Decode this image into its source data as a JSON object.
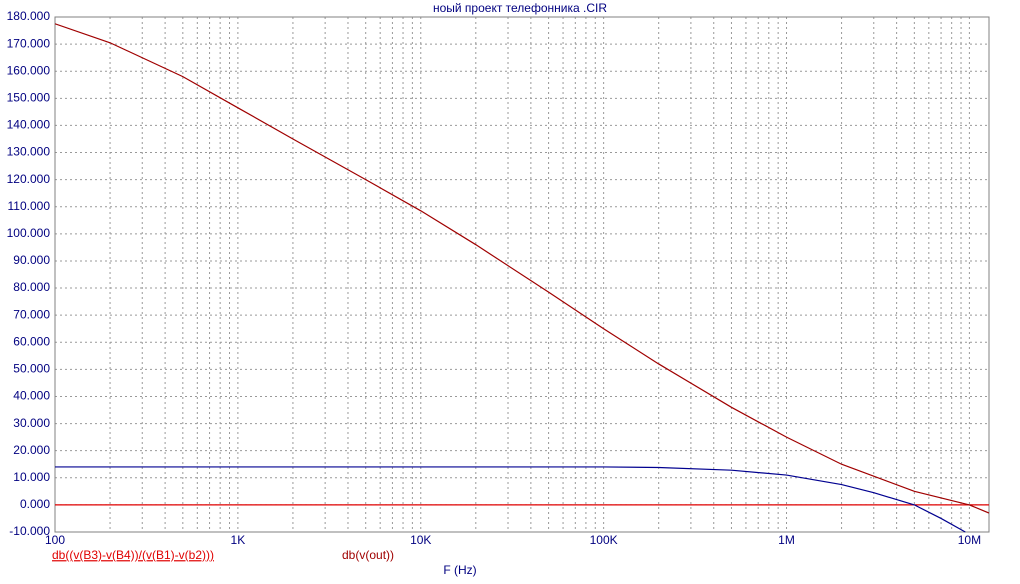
{
  "chart_data": {
    "type": "line",
    "title": "ноый проект телефонника .CIR",
    "x_label": "F (Hz)",
    "log_x": true,
    "grid": true,
    "xlim": [
      100,
      12800000
    ],
    "ylim": [
      -10,
      180
    ],
    "xticks": [
      100,
      {
        "value": 1000,
        "label": "1K"
      },
      {
        "value": 10000,
        "label": "10K"
      },
      {
        "value": 100000,
        "label": "100K"
      },
      {
        "value": 1000000,
        "label": "1M"
      },
      {
        "value": 10000000,
        "label": "10M"
      }
    ],
    "yticks": [
      {
        "value": -10,
        "label": "-10.000"
      },
      {
        "value": 0,
        "label": "0.000"
      },
      {
        "value": 10,
        "label": "10.000"
      },
      {
        "value": 20,
        "label": "20.000"
      },
      {
        "value": 30,
        "label": "30.000"
      },
      {
        "value": 40,
        "label": "40.000"
      },
      {
        "value": 50,
        "label": "50.000"
      },
      {
        "value": 60,
        "label": "60.000"
      },
      {
        "value": 70,
        "label": "70.000"
      },
      {
        "value": 80,
        "label": "80.000"
      },
      {
        "value": 90,
        "label": "90.000"
      },
      {
        "value": 100,
        "label": "100.000"
      },
      {
        "value": 110,
        "label": "110.000"
      },
      {
        "value": 120,
        "label": "120.000"
      },
      {
        "value": 130,
        "label": "130.000"
      },
      {
        "value": 140,
        "label": "140.000"
      },
      {
        "value": 150,
        "label": "150.000"
      },
      {
        "value": 160,
        "label": "160.000"
      },
      {
        "value": 170,
        "label": "170.000"
      },
      {
        "value": 180,
        "label": "180.000"
      }
    ],
    "series": [
      {
        "name": "db((v(B3)-v(B4))/(v(B1)-v(b2)))",
        "color": "#e00000",
        "x": [
          100,
          12800000
        ],
        "values": [
          0,
          0
        ]
      },
      {
        "name": "db(v(out))",
        "color": "#a00000",
        "x": [
          100,
          200,
          500,
          1000,
          2000,
          5000,
          10000,
          20000,
          50000,
          100000,
          200000,
          500000,
          1000000,
          2000000,
          5000000,
          10000000,
          12800000
        ],
        "values": [
          177.5,
          170.5,
          158,
          146.5,
          135,
          120,
          108.5,
          96,
          78.5,
          65,
          52,
          36,
          25,
          15,
          5,
          0,
          -3
        ]
      },
      {
        "color": "#000090",
        "x": [
          100,
          100000,
          200000,
          500000,
          1000000,
          2000000,
          3000000,
          5000000,
          7000000,
          9500000
        ],
        "values": [
          14,
          14,
          13.8,
          12.8,
          11,
          7.5,
          4.5,
          0,
          -5,
          -10
        ]
      }
    ]
  }
}
